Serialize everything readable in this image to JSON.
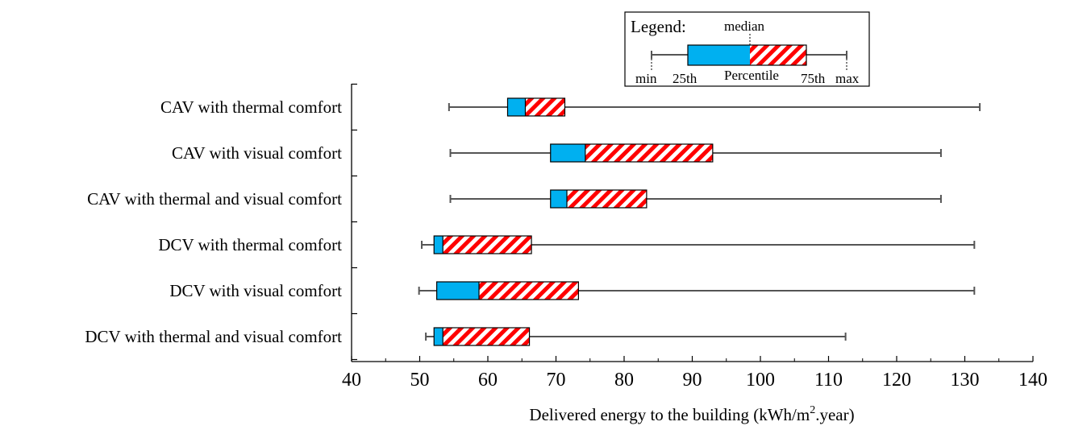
{
  "colors": {
    "low_box": "#00b0f0",
    "high_stripe": "#ff0000",
    "whisker": "#555555",
    "axis": "#000000"
  },
  "legend": {
    "title": "Legend:",
    "median": "median",
    "min": "min",
    "p25": "25th",
    "percentile": "Percentile",
    "p75": "75th",
    "max": "max"
  },
  "chart_data": {
    "type": "boxplot",
    "orientation": "horizontal",
    "title": "",
    "xlabel_main": "Delivered energy to the building (kWh/m",
    "xlabel_sup": "2",
    "xlabel_tail": ".year)",
    "ylabel": "",
    "xlim": [
      40,
      140
    ],
    "xticks": [
      40,
      50,
      60,
      70,
      80,
      90,
      100,
      110,
      120,
      130,
      140
    ],
    "categories": [
      "CAV with thermal comfort",
      "CAV with visual comfort",
      "CAV with thermal and visual comfort",
      "DCV with thermal comfort",
      "DCV with visual comfort",
      "DCV with thermal and visual comfort"
    ],
    "boxes": [
      {
        "min": 54.3,
        "q1": 62.9,
        "median": 65.5,
        "q3": 71.3,
        "max": 132.2
      },
      {
        "min": 54.5,
        "q1": 69.2,
        "median": 74.3,
        "q3": 93.0,
        "max": 126.5
      },
      {
        "min": 54.5,
        "q1": 69.2,
        "median": 71.6,
        "q3": 83.3,
        "max": 126.5
      },
      {
        "min": 50.3,
        "q1": 52.1,
        "median": 53.4,
        "q3": 66.4,
        "max": 131.4
      },
      {
        "min": 49.9,
        "q1": 52.5,
        "median": 58.7,
        "q3": 73.3,
        "max": 131.4
      },
      {
        "min": 50.9,
        "q1": 52.1,
        "median": 53.4,
        "q3": 66.1,
        "max": 112.5
      }
    ]
  }
}
